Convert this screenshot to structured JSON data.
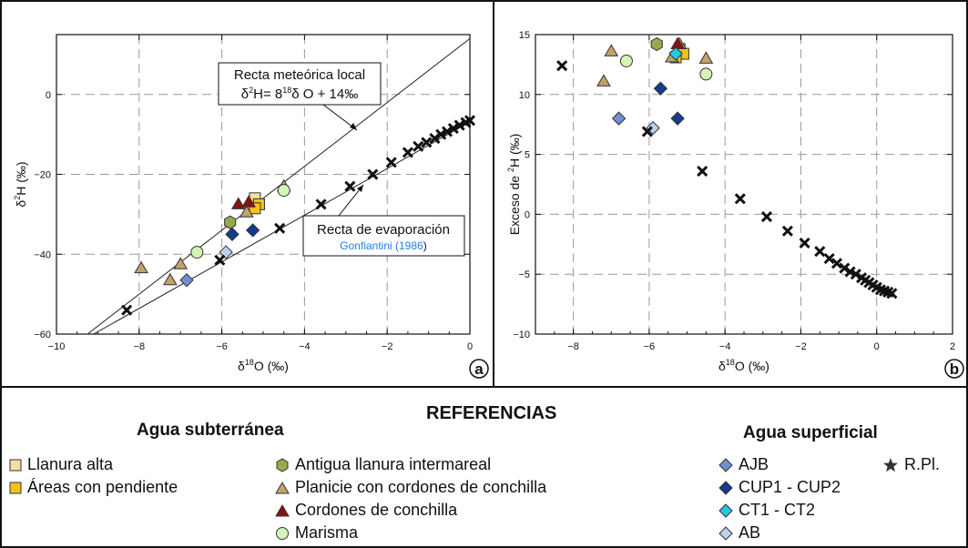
{
  "colors": {
    "llanura_alta": "#f4dfa0",
    "areas_pendiente": "#f2c21a",
    "antigua_llanura": "#9aa84d",
    "planicie_cordones": "#c4a06a",
    "cordones": "#8b1111",
    "marisma": "#d4f5b6",
    "ajb": "#6f8fd0",
    "cup": "#153b8f",
    "ct": "#25c7e6",
    "ab": "#bcd0f0",
    "rpl": "#111111",
    "citation": "#1f7fe0"
  },
  "chart_data": [
    {
      "id": "a",
      "type": "scatter",
      "panel_label": "a",
      "xlabel_main": "δ",
      "xlabel_sup": "18",
      "xlabel_rest": "O (‰)",
      "ylabel_main": "δ",
      "ylabel_sup": "2",
      "ylabel_rest": "H (‰)",
      "xlim": [
        -10,
        0
      ],
      "ylim": [
        -60,
        15
      ],
      "xticks": [
        -10,
        -8,
        -6,
        -4,
        -2,
        0
      ],
      "yticks": [
        -60,
        -40,
        -20,
        0
      ],
      "grid": true,
      "lines": [
        {
          "name": "Recta meteórica local",
          "points": [
            [
              -9.25,
              -60
            ],
            [
              0,
              14
            ]
          ]
        },
        {
          "name": "Recta de evaporación",
          "points": [
            [
              -9.1,
              -60
            ],
            [
              0.15,
              -6
            ]
          ]
        }
      ],
      "annotations": {
        "rml_line1": "Recta meteórica local",
        "rml_eq_a": "δ",
        "rml_eq_sup1": "2",
        "rml_eq_b": "H= 8",
        "rml_eq_sup2": "18",
        "rml_eq_c": "δ  O + 14‰",
        "evap_line1": "Recta de evaporación",
        "evap_cite_a": "Gonfiantini (",
        "evap_cite_year": "1986",
        "evap_cite_b": ")"
      },
      "series": [
        {
          "name": "Llanura alta",
          "points": [
            [
              -5.2,
              -26
            ]
          ]
        },
        {
          "name": "Áreas con pendiente",
          "points": [
            [
              -5.1,
              -27.5
            ],
            [
              -5.2,
              -28.5
            ]
          ]
        },
        {
          "name": "Antigua llanura intermareal",
          "points": [
            [
              -5.8,
              -32
            ]
          ]
        },
        {
          "name": "Planicie con cordones de conchilla",
          "points": [
            [
              -7.95,
              -43.5
            ],
            [
              -7.0,
              -42.5
            ],
            [
              -7.25,
              -46.5
            ],
            [
              -5.4,
              -29.5
            ],
            [
              -4.5,
              -23
            ]
          ]
        },
        {
          "name": "Cordones de conchilla",
          "points": [
            [
              -5.6,
              -27.5
            ],
            [
              -5.35,
              -27
            ]
          ]
        },
        {
          "name": "Marisma",
          "points": [
            [
              -6.6,
              -39.5
            ],
            [
              -4.5,
              -24
            ]
          ]
        },
        {
          "name": "AJB",
          "points": [
            [
              -6.85,
              -46.5
            ]
          ]
        },
        {
          "name": "CUP1 - CUP2",
          "points": [
            [
              -5.75,
              -35
            ],
            [
              -5.25,
              -34
            ]
          ]
        },
        {
          "name": "CT1 - CT2",
          "points": []
        },
        {
          "name": "AB",
          "points": [
            [
              -5.9,
              -39.5
            ]
          ]
        },
        {
          "name": "R.Pl.",
          "points": [
            [
              -8.3,
              -54
            ],
            [
              -6.05,
              -41.5
            ],
            [
              -4.6,
              -33.5
            ],
            [
              -3.6,
              -27.5
            ],
            [
              -2.9,
              -23
            ],
            [
              -2.35,
              -20
            ],
            [
              -1.9,
              -17
            ],
            [
              -1.5,
              -14.5
            ],
            [
              -1.25,
              -13
            ],
            [
              -1.05,
              -12
            ],
            [
              -0.85,
              -11
            ],
            [
              -0.7,
              -10
            ],
            [
              -0.55,
              -9.3
            ],
            [
              -0.4,
              -8.5
            ],
            [
              -0.25,
              -7.7
            ],
            [
              -0.1,
              -7
            ],
            [
              0.0,
              -6.5
            ]
          ]
        }
      ]
    },
    {
      "id": "b",
      "type": "scatter",
      "panel_label": "b",
      "xlabel_main": "δ",
      "xlabel_sup": "18",
      "xlabel_rest": "O (‰)",
      "ylabel_main": "Exceso de ",
      "ylabel_sup": "2",
      "ylabel_rest": "H (‰)",
      "xlim": [
        -9,
        2
      ],
      "ylim": [
        -10,
        15
      ],
      "xticks": [
        -8,
        -6,
        -4,
        -2,
        0,
        2
      ],
      "yticks": [
        -10,
        -5,
        0,
        5,
        10,
        15
      ],
      "grid": true,
      "series": [
        {
          "name": "Llanura alta",
          "points": [
            [
              -5.2,
              13.8
            ]
          ]
        },
        {
          "name": "Áreas con pendiente",
          "points": [
            [
              -5.1,
              13.4
            ],
            [
              -5.3,
              13.1
            ]
          ]
        },
        {
          "name": "Antigua llanura intermareal",
          "points": [
            [
              -5.8,
              14.2
            ]
          ]
        },
        {
          "name": "Planicie con cordones de conchilla",
          "points": [
            [
              -7.0,
              13.6
            ],
            [
              -7.2,
              11.1
            ],
            [
              -5.4,
              13.1
            ],
            [
              -4.5,
              13.0
            ],
            [
              -5.2,
              14.2
            ]
          ]
        },
        {
          "name": "Cordones de conchilla",
          "points": [
            [
              -5.25,
              14.2
            ]
          ]
        },
        {
          "name": "Marisma",
          "points": [
            [
              -6.6,
              12.8
            ],
            [
              -4.5,
              11.7
            ]
          ]
        },
        {
          "name": "AJB",
          "points": [
            [
              -6.8,
              8.0
            ]
          ]
        },
        {
          "name": "CUP1 - CUP2",
          "points": [
            [
              -5.7,
              10.5
            ],
            [
              -5.25,
              8.0
            ]
          ]
        },
        {
          "name": "CT1 - CT2",
          "points": [
            [
              -5.3,
              13.4
            ]
          ]
        },
        {
          "name": "AB",
          "points": [
            [
              -5.9,
              7.2
            ]
          ]
        },
        {
          "name": "R.Pl.",
          "points": [
            [
              -8.3,
              12.4
            ],
            [
              -6.05,
              6.9
            ],
            [
              -4.6,
              3.6
            ],
            [
              -3.6,
              1.3
            ],
            [
              -2.9,
              -0.2
            ],
            [
              -2.35,
              -1.4
            ],
            [
              -1.9,
              -2.4
            ],
            [
              -1.5,
              -3.1
            ],
            [
              -1.25,
              -3.7
            ],
            [
              -1.05,
              -4.1
            ],
            [
              -0.85,
              -4.5
            ],
            [
              -0.7,
              -4.8
            ],
            [
              -0.55,
              -5.0
            ],
            [
              -0.4,
              -5.3
            ],
            [
              -0.3,
              -5.5
            ],
            [
              -0.2,
              -5.7
            ],
            [
              -0.1,
              -5.9
            ],
            [
              0.0,
              -6.1
            ],
            [
              0.1,
              -6.3
            ],
            [
              0.2,
              -6.4
            ],
            [
              0.3,
              -6.5
            ],
            [
              0.4,
              -6.6
            ]
          ]
        }
      ]
    }
  ],
  "legend": {
    "title": "REFERENCIAS",
    "sub_title": "Agua subterránea",
    "sup_title": "Agua superficial",
    "items": {
      "llanura_alta": "Llanura alta",
      "areas_pendiente": "Áreas con pendiente",
      "antigua_llanura": "Antigua llanura intermareal",
      "planicie_cordones": "Planicie con cordones de conchilla",
      "cordones": "Cordones de conchilla",
      "marisma": "Marisma",
      "ajb": "AJB",
      "cup": "CUP1 - CUP2",
      "ct": "CT1 - CT2",
      "ab": "AB",
      "rpl": "R.Pl."
    }
  }
}
